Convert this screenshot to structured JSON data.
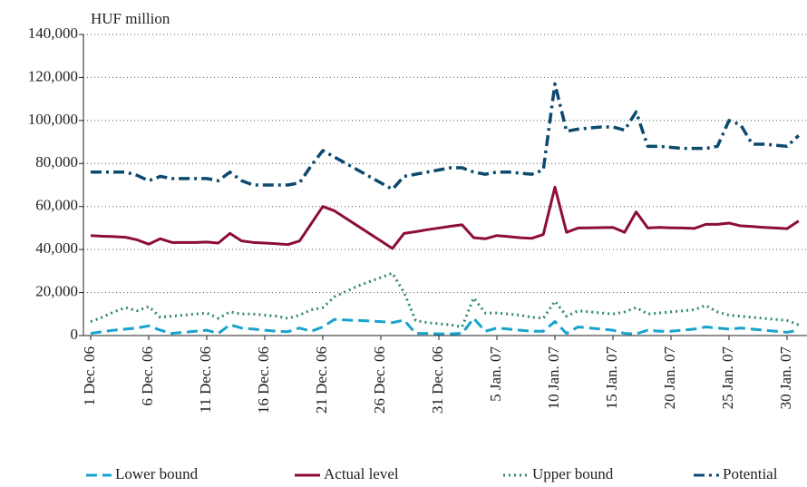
{
  "chart_data": {
    "type": "line",
    "y_axis_label": "HUF million",
    "categories": [
      "1 Dec. 06",
      null,
      null,
      null,
      null,
      "6 Dec. 06",
      null,
      null,
      null,
      null,
      "11 Dec. 06",
      null,
      null,
      null,
      null,
      "16 Dec. 06",
      null,
      null,
      null,
      null,
      "21 Dec. 06",
      null,
      null,
      null,
      null,
      "26 Dec. 06",
      null,
      null,
      null,
      null,
      "31 Dec. 06",
      null,
      null,
      null,
      null,
      "5 Jan. 07",
      null,
      null,
      null,
      null,
      "10 Jan. 07",
      null,
      null,
      null,
      null,
      "15 Jan. 07",
      null,
      null,
      null,
      null,
      "20 Jan. 07",
      null,
      null,
      null,
      null,
      "25 Jan. 07",
      null,
      null,
      null,
      null,
      "30 Jan. 07",
      null
    ],
    "series": [
      {
        "name": "Lower bound",
        "color": "#19a3cc",
        "line_style": "dashed",
        "values": [
          1000,
          1800,
          2500,
          3000,
          3500,
          4500,
          2500,
          1000,
          1500,
          2000,
          2500,
          1000,
          5000,
          3500,
          3000,
          2500,
          2000,
          1800,
          3500,
          2000,
          4000,
          7500,
          7200,
          7000,
          6800,
          6500,
          6000,
          7200,
          1000,
          1000,
          800,
          800,
          1000,
          8000,
          2000,
          3500,
          3000,
          2500,
          2000,
          2000,
          6500,
          1000,
          4000,
          3500,
          3000,
          2500,
          1000,
          800,
          2500,
          2000,
          2000,
          2500,
          3000,
          4000,
          3500,
          3000,
          3500,
          3000,
          2500,
          2000,
          1500,
          2500
        ]
      },
      {
        "name": "Actual level",
        "color": "#8c0c3c",
        "line_style": "solid",
        "values": [
          46500,
          46200,
          46000,
          45700,
          44500,
          42500,
          45000,
          43300,
          43300,
          43300,
          43500,
          43000,
          47500,
          44000,
          43300,
          43000,
          42700,
          42300,
          44000,
          52000,
          60000,
          58000,
          54500,
          51000,
          47500,
          44000,
          40500,
          47500,
          48300,
          49200,
          50000,
          50800,
          51500,
          45500,
          45000,
          46500,
          46000,
          45500,
          45200,
          47000,
          69000,
          48000,
          50000,
          50100,
          50200,
          50300,
          48000,
          57500,
          50000,
          50300,
          50100,
          50000,
          49800,
          51700,
          51700,
          52300,
          51000,
          50700,
          50300,
          50000,
          49700,
          53300
        ]
      },
      {
        "name": "Upper bound",
        "color": "#2e8b6a",
        "line_style": "dotted",
        "values": [
          6500,
          8500,
          11000,
          13000,
          11500,
          13500,
          8500,
          9000,
          9500,
          10000,
          10500,
          8000,
          11000,
          10000,
          10000,
          9500,
          9000,
          8000,
          9500,
          12000,
          13000,
          18000,
          20500,
          23000,
          25000,
          27000,
          29000,
          20000,
          7000,
          6000,
          5500,
          5000,
          4000,
          17500,
          10500,
          10500,
          10000,
          9500,
          8500,
          8000,
          16000,
          9000,
          11500,
          11000,
          10500,
          10000,
          11000,
          13000,
          10000,
          10500,
          11000,
          11500,
          12000,
          14000,
          11000,
          9500,
          9000,
          8500,
          8000,
          7500,
          7000,
          5000
        ]
      },
      {
        "name": "Potential",
        "color": "#0b4a6e",
        "line_style": "dashdot",
        "values": [
          76000,
          76000,
          76000,
          76000,
          74500,
          72000,
          74000,
          73000,
          73000,
          73000,
          73000,
          72000,
          76000,
          72000,
          70000,
          70000,
          70000,
          70000,
          71000,
          79000,
          86000,
          83000,
          80000,
          77000,
          74000,
          71000,
          68000,
          74000,
          75000,
          76000,
          77000,
          78000,
          78000,
          76000,
          75000,
          76000,
          76000,
          75500,
          75000,
          77000,
          117000,
          95000,
          96000,
          96500,
          97000,
          97000,
          95500,
          104000,
          88000,
          88000,
          87500,
          87000,
          87000,
          87000,
          88000,
          100000,
          98000,
          89000,
          89000,
          88500,
          88000,
          93000
        ]
      }
    ],
    "ylim": [
      0,
      140000
    ],
    "yticks": [
      0,
      {
        "value": 20000,
        "label": "20,000"
      },
      {
        "value": 40000,
        "label": "40,000"
      },
      {
        "value": 60000,
        "label": "60,000"
      },
      {
        "value": 80000,
        "label": "80,000"
      },
      {
        "value": 100000,
        "label": "100,000"
      },
      {
        "value": 120000,
        "label": "120,000"
      },
      {
        "value": 140000,
        "label": "140,000"
      }
    ],
    "grid": true,
    "legend": "bottom"
  }
}
